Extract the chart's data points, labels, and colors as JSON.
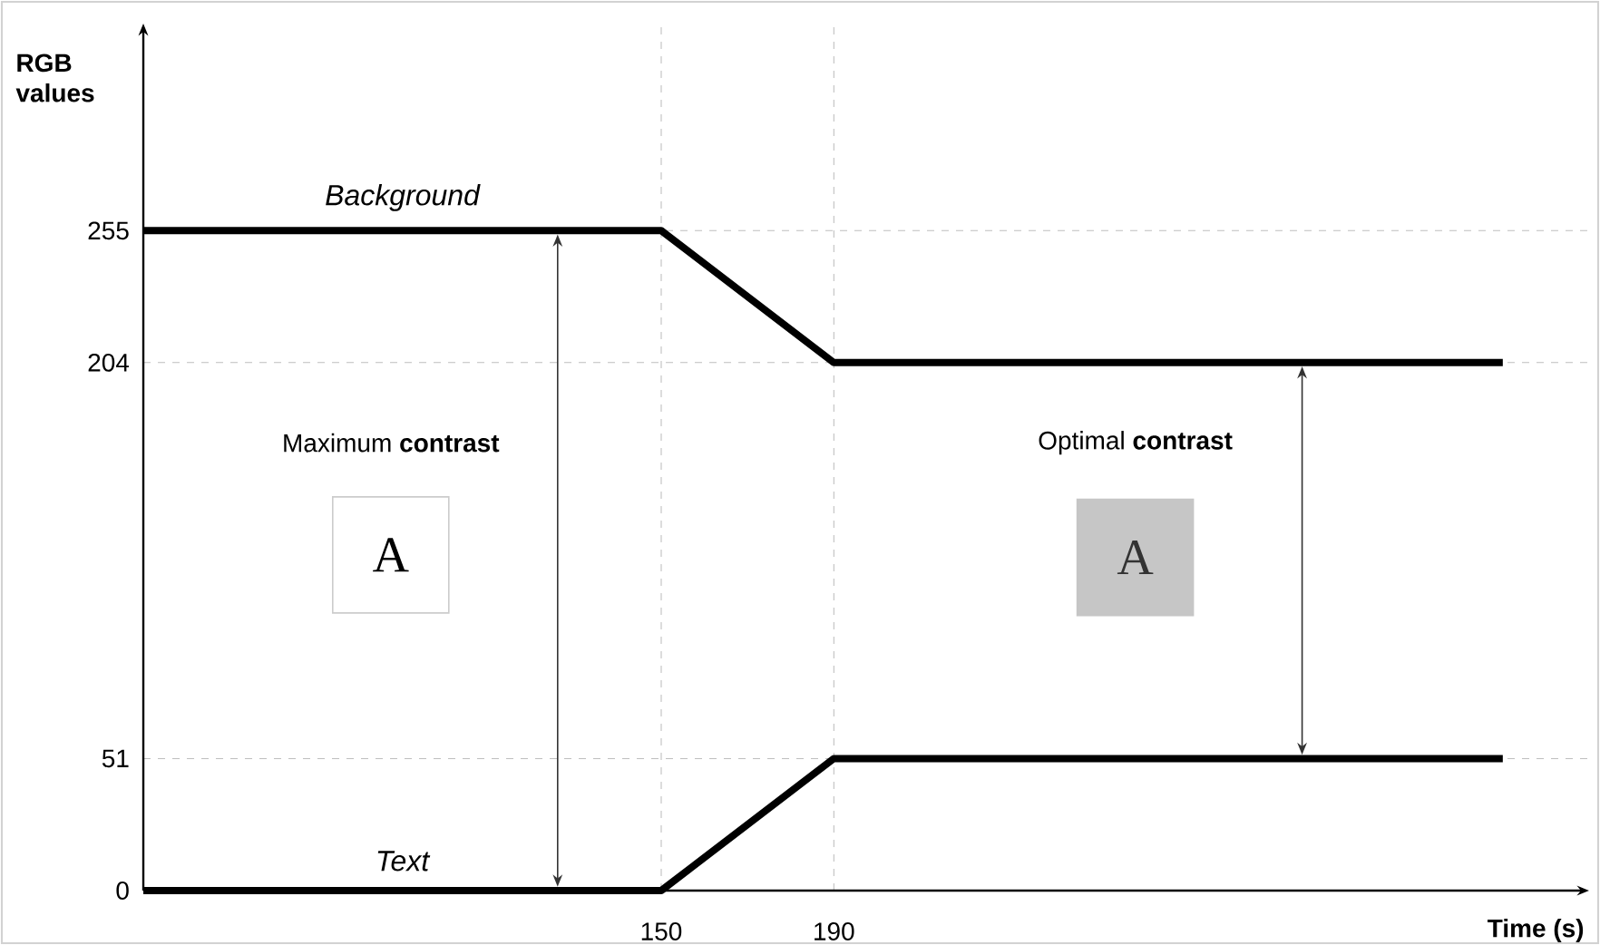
{
  "chart_data": {
    "type": "line",
    "xlabel": "Time (s)",
    "ylabel": "RGB values",
    "xlim": [
      30,
      365
    ],
    "ylim": [
      0,
      335
    ],
    "xticks": [
      150,
      190
    ],
    "yticks": [
      0,
      51,
      204,
      255
    ],
    "grid": true,
    "legend": false,
    "marker": "none",
    "line_style": "solid",
    "series": [
      {
        "name": "Background",
        "color": "#000000",
        "x": [
          30,
          150,
          190,
          345
        ],
        "values": [
          255,
          255,
          204,
          204
        ]
      },
      {
        "name": "Text",
        "color": "#000000",
        "x": [
          30,
          150,
          190,
          345
        ],
        "values": [
          0,
          0,
          51,
          51
        ]
      }
    ],
    "annotations": [
      "Maximum **contrast**",
      "A",
      "Optimal **contrast**",
      "A"
    ]
  }
}
